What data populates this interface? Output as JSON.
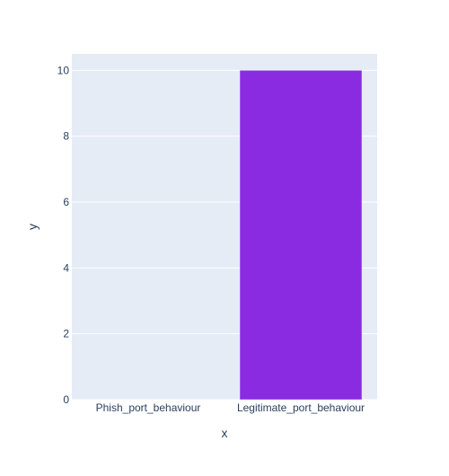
{
  "chart_data": {
    "type": "bar",
    "categories": [
      "Phish_port_behaviour",
      "Legitimate_port_behaviour"
    ],
    "values": [
      0,
      10
    ],
    "xlabel": "x",
    "ylabel": "y",
    "ylim": [
      0,
      10.5
    ],
    "yticks": [
      0,
      2,
      4,
      6,
      8,
      10
    ],
    "grid": true,
    "legend": "none",
    "colors": {
      "plot_background": "#e5ecf6",
      "bar": "#8a2be2",
      "gridline": "#ffffff",
      "text": "#2a3f5f"
    }
  }
}
